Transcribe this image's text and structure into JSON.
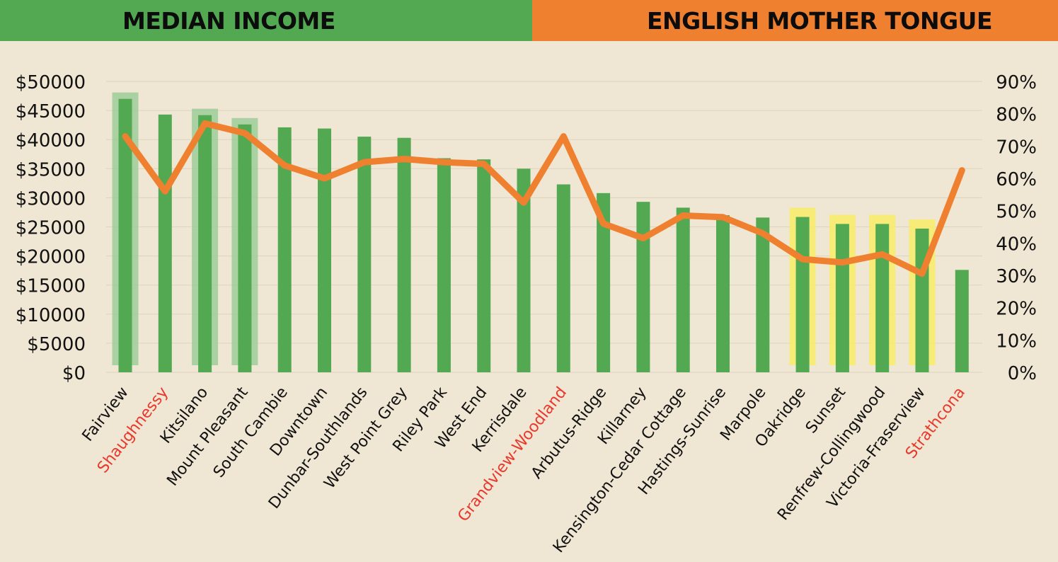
{
  "header": {
    "left_title": "MEDIAN INCOME",
    "right_title": "ENGLISH MOTHER TONGUE"
  },
  "colors": {
    "background": "#efe6d3",
    "income_header": "#53a952",
    "english_header": "#ef8030",
    "income_bar": "#53a952",
    "english_line": "#ef8030",
    "highlight_green": "#9ccc98",
    "highlight_yellow": "#f7ec6e",
    "label_highlight": "#e8392d"
  },
  "chart_data": {
    "type": "bar",
    "categories": [
      "Fairview",
      "Shaughnessy",
      "Kitsilano",
      "Mount Pleasant",
      "South Cambie",
      "Downtown",
      "Dunbar-Southlands",
      "West Point Grey",
      "Riley Park",
      "West End",
      "Kerrisdale",
      "Grandview-Woodland",
      "Arbutus-Ridge",
      "Killarney",
      "Kensington-Cedar Cottage",
      "Hastings-Sunrise",
      "Marpole",
      "Oakridge",
      "Sunset",
      "Renfrew-Collingwood",
      "Victoria-Fraserview",
      "Strathcona"
    ],
    "red_labels": [
      "Shaughnessy",
      "Grandview-Woodland",
      "Strathcona"
    ],
    "series": [
      {
        "axis": "left",
        "type": "bar",
        "values": [
          47000,
          44300,
          44200,
          42600,
          42100,
          41900,
          40500,
          40300,
          36800,
          36600,
          35000,
          32300,
          30800,
          29300,
          28300,
          27000,
          26600,
          26700,
          25500,
          25500,
          24700,
          17600
        ]
      },
      {
        "axis": "right",
        "type": "line",
        "values": [
          73,
          56,
          77,
          74,
          64,
          60,
          65,
          66,
          65,
          64.5,
          52.5,
          73,
          46,
          41.5,
          48.5,
          48,
          43,
          35,
          34,
          36.5,
          30.5,
          62.5
        ]
      }
    ],
    "highlight_bands": {
      "green": [
        "Fairview",
        "Kitsilano",
        "Mount Pleasant"
      ],
      "yellow": [
        "Oakridge",
        "Sunset",
        "Renfrew-Collingwood",
        "Victoria-Fraserview"
      ]
    },
    "left_axis": {
      "ylim": [
        0,
        50000
      ],
      "ticks": [
        "$0",
        "$5000",
        "$10000",
        "$15000",
        "$20000",
        "$25000",
        "$30000",
        "$35000",
        "$40000",
        "$45000",
        "$50000"
      ]
    },
    "right_axis": {
      "ylim": [
        0,
        90
      ],
      "ticks": [
        "0%",
        "10%",
        "20%",
        "30%",
        "40%",
        "50%",
        "60%",
        "70%",
        "80%",
        "90%"
      ]
    },
    "grid": true
  }
}
